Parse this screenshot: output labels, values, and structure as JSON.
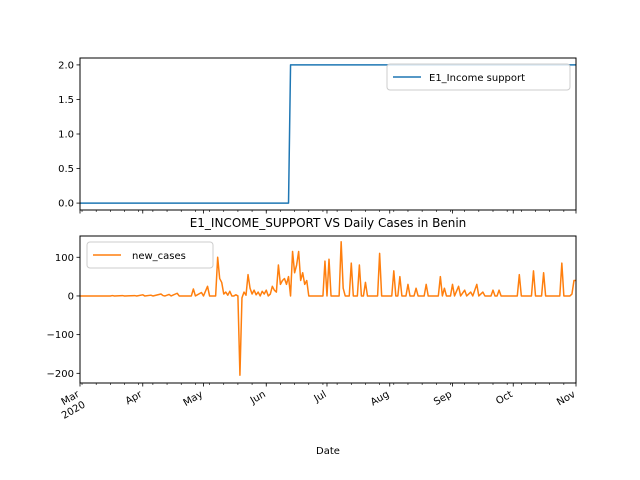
{
  "figure": {
    "title": "E1_INCOME_SUPPORT VS Daily Cases in Benin",
    "xlabel": "Date"
  },
  "chart_data": [
    {
      "type": "line",
      "title": "",
      "xlabel": "",
      "ylabel": "",
      "xlim": [
        "2020-03-01",
        "2020-11-01"
      ],
      "ylim": [
        -0.1,
        2.1
      ],
      "yticks": [
        0.0,
        0.5,
        1.0,
        1.5,
        2.0
      ],
      "ytick_labels": [
        "0.0",
        "0.5",
        "1.0",
        "1.5",
        "2.0"
      ],
      "legend": "upper right",
      "grid": false,
      "series": [
        {
          "name": "E1_Income support",
          "color": "#1f77b4",
          "drawstyle": "step",
          "points": [
            [
              "2020-03-01",
              0
            ],
            [
              "2020-06-12",
              0
            ],
            [
              "2020-06-13",
              2
            ],
            [
              "2020-11-01",
              2
            ]
          ]
        }
      ]
    },
    {
      "type": "line",
      "title": "",
      "xlabel": "Date",
      "ylabel": "",
      "xlim": [
        "2020-03-01",
        "2020-11-01"
      ],
      "ylim": [
        -225,
        155
      ],
      "yticks": [
        -200,
        -100,
        0,
        100
      ],
      "ytick_labels": [
        "−200",
        "−100",
        "0",
        "100"
      ],
      "xticks": [
        "2020-03-01",
        "2020-04-01",
        "2020-05-01",
        "2020-06-01",
        "2020-07-01",
        "2020-08-01",
        "2020-09-01",
        "2020-10-01",
        "2020-11-01"
      ],
      "xtick_labels": [
        "Mar\n2020",
        "Apr",
        "May",
        "Jun",
        "Jul",
        "Aug",
        "Sep",
        "Oct",
        "Nov"
      ],
      "legend": "upper left",
      "grid": false,
      "series": [
        {
          "name": "new_cases",
          "color": "#ff7f0e",
          "points": [
            [
              "2020-03-01",
              0
            ],
            [
              "2020-03-16",
              0
            ],
            [
              "2020-03-17",
              1
            ],
            [
              "2020-03-18",
              0
            ],
            [
              "2020-03-22",
              1
            ],
            [
              "2020-03-23",
              0
            ],
            [
              "2020-03-28",
              1
            ],
            [
              "2020-03-29",
              0
            ],
            [
              "2020-04-01",
              3
            ],
            [
              "2020-04-02",
              0
            ],
            [
              "2020-04-05",
              2
            ],
            [
              "2020-04-06",
              0
            ],
            [
              "2020-04-10",
              5
            ],
            [
              "2020-04-11",
              1
            ],
            [
              "2020-04-12",
              0
            ],
            [
              "2020-04-14",
              4
            ],
            [
              "2020-04-15",
              0
            ],
            [
              "2020-04-18",
              7
            ],
            [
              "2020-04-19",
              0
            ],
            [
              "2020-04-25",
              0
            ],
            [
              "2020-04-26",
              18
            ],
            [
              "2020-04-27",
              0
            ],
            [
              "2020-04-30",
              9
            ],
            [
              "2020-05-01",
              0
            ],
            [
              "2020-05-03",
              25
            ],
            [
              "2020-05-04",
              0
            ],
            [
              "2020-05-07",
              0
            ],
            [
              "2020-05-08",
              100
            ],
            [
              "2020-05-09",
              45
            ],
            [
              "2020-05-10",
              35
            ],
            [
              "2020-05-11",
              5
            ],
            [
              "2020-05-12",
              10
            ],
            [
              "2020-05-13",
              2
            ],
            [
              "2020-05-14",
              12
            ],
            [
              "2020-05-15",
              0
            ],
            [
              "2020-05-16",
              0
            ],
            [
              "2020-05-17",
              3
            ],
            [
              "2020-05-18",
              0
            ],
            [
              "2020-05-19",
              -205
            ],
            [
              "2020-05-20",
              -5
            ],
            [
              "2020-05-21",
              10
            ],
            [
              "2020-05-22",
              2
            ],
            [
              "2020-05-23",
              55
            ],
            [
              "2020-05-24",
              20
            ],
            [
              "2020-05-25",
              5
            ],
            [
              "2020-05-26",
              15
            ],
            [
              "2020-05-27",
              3
            ],
            [
              "2020-05-28",
              10
            ],
            [
              "2020-05-29",
              0
            ],
            [
              "2020-05-30",
              12
            ],
            [
              "2020-05-31",
              5
            ],
            [
              "2020-06-01",
              15
            ],
            [
              "2020-06-02",
              0
            ],
            [
              "2020-06-03",
              5
            ],
            [
              "2020-06-04",
              25
            ],
            [
              "2020-06-05",
              15
            ],
            [
              "2020-06-06",
              10
            ],
            [
              "2020-06-07",
              80
            ],
            [
              "2020-06-08",
              30
            ],
            [
              "2020-06-09",
              40
            ],
            [
              "2020-06-10",
              45
            ],
            [
              "2020-06-11",
              30
            ],
            [
              "2020-06-12",
              50
            ],
            [
              "2020-06-13",
              0
            ],
            [
              "2020-06-14",
              115
            ],
            [
              "2020-06-15",
              60
            ],
            [
              "2020-06-16",
              80
            ],
            [
              "2020-06-17",
              115
            ],
            [
              "2020-06-18",
              40
            ],
            [
              "2020-06-19",
              60
            ],
            [
              "2020-06-20",
              30
            ],
            [
              "2020-06-21",
              40
            ],
            [
              "2020-06-22",
              0
            ],
            [
              "2020-06-29",
              0
            ],
            [
              "2020-06-30",
              90
            ],
            [
              "2020-07-01",
              0
            ],
            [
              "2020-07-02",
              95
            ],
            [
              "2020-07-03",
              0
            ],
            [
              "2020-07-07",
              0
            ],
            [
              "2020-07-08",
              140
            ],
            [
              "2020-07-09",
              20
            ],
            [
              "2020-07-10",
              0
            ],
            [
              "2020-07-12",
              0
            ],
            [
              "2020-07-13",
              85
            ],
            [
              "2020-07-14",
              0
            ],
            [
              "2020-07-16",
              0
            ],
            [
              "2020-07-17",
              80
            ],
            [
              "2020-07-18",
              0
            ],
            [
              "2020-07-19",
              0
            ],
            [
              "2020-07-20",
              35
            ],
            [
              "2020-07-21",
              0
            ],
            [
              "2020-07-26",
              0
            ],
            [
              "2020-07-27",
              110
            ],
            [
              "2020-07-28",
              0
            ],
            [
              "2020-08-02",
              0
            ],
            [
              "2020-08-03",
              65
            ],
            [
              "2020-08-04",
              0
            ],
            [
              "2020-08-05",
              0
            ],
            [
              "2020-08-06",
              50
            ],
            [
              "2020-08-07",
              0
            ],
            [
              "2020-08-09",
              0
            ],
            [
              "2020-08-10",
              30
            ],
            [
              "2020-08-11",
              0
            ],
            [
              "2020-08-13",
              0
            ],
            [
              "2020-08-14",
              20
            ],
            [
              "2020-08-15",
              0
            ],
            [
              "2020-08-18",
              0
            ],
            [
              "2020-08-19",
              30
            ],
            [
              "2020-08-20",
              0
            ],
            [
              "2020-08-25",
              0
            ],
            [
              "2020-08-26",
              50
            ],
            [
              "2020-08-27",
              0
            ],
            [
              "2020-08-28",
              20
            ],
            [
              "2020-08-29",
              0
            ],
            [
              "2020-08-31",
              0
            ],
            [
              "2020-09-01",
              30
            ],
            [
              "2020-09-02",
              0
            ],
            [
              "2020-09-04",
              25
            ],
            [
              "2020-09-05",
              0
            ],
            [
              "2020-09-07",
              15
            ],
            [
              "2020-09-08",
              0
            ],
            [
              "2020-09-10",
              10
            ],
            [
              "2020-09-11",
              0
            ],
            [
              "2020-09-13",
              30
            ],
            [
              "2020-09-14",
              0
            ],
            [
              "2020-09-16",
              10
            ],
            [
              "2020-09-17",
              0
            ],
            [
              "2020-09-20",
              0
            ],
            [
              "2020-09-21",
              15
            ],
            [
              "2020-09-22",
              0
            ],
            [
              "2020-09-23",
              0
            ],
            [
              "2020-09-24",
              15
            ],
            [
              "2020-09-25",
              0
            ],
            [
              "2020-10-03",
              0
            ],
            [
              "2020-10-04",
              55
            ],
            [
              "2020-10-05",
              0
            ],
            [
              "2020-10-10",
              0
            ],
            [
              "2020-10-11",
              65
            ],
            [
              "2020-10-12",
              0
            ],
            [
              "2020-10-15",
              0
            ],
            [
              "2020-10-16",
              60
            ],
            [
              "2020-10-17",
              0
            ],
            [
              "2020-10-24",
              0
            ],
            [
              "2020-10-25",
              85
            ],
            [
              "2020-10-26",
              0
            ],
            [
              "2020-10-29",
              0
            ],
            [
              "2020-10-30",
              5
            ],
            [
              "2020-10-31",
              40
            ],
            [
              "2020-11-01",
              40
            ]
          ]
        }
      ]
    }
  ]
}
